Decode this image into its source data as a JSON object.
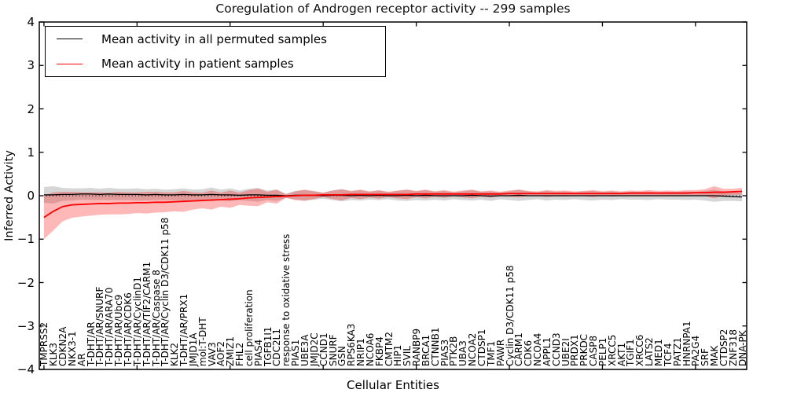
{
  "chart_data": {
    "type": "line",
    "title": "Coregulation of Androgen receptor activity -- 299 samples",
    "xlabel": "Cellular Entities",
    "ylabel": "Inferred Activity",
    "ylim": [
      -4,
      4
    ],
    "ytick_labels": [
      "4",
      "3",
      "2",
      "1",
      "0",
      "−1",
      "−2",
      "−3",
      "−4"
    ],
    "grid": false,
    "legend_position": "upper left",
    "categories": [
      "TMPRSS2",
      "KLK3",
      "CDKN2A",
      "NKX3-1",
      "AR",
      "T-DHT/AR",
      "T-DHT/AR/SNURF",
      "T-DHT/AR/ARA70",
      "T-DHT/AR/Ubc9",
      "T-DHT/AR/CDK6",
      "T-DHT/AR/CyclinD1",
      "T-DHT/AR/TIF2/CARM1",
      "T-DHT/AR/Caspase 8",
      "T-DHT/AR/Cyclin D3/CDK11 p58",
      "KLK2",
      "T-DHT/AR/PRX1",
      "JMJD1A",
      "mol:T-DHT",
      "VAV3",
      "AOF2",
      "ZMIZ1",
      "FHL2",
      "cell proliferation",
      "PIAS4",
      "TGFB1I1",
      "CDC2L1",
      "response to oxidative stress",
      "PIAS1",
      "UBE3A",
      "JMJD2C",
      "CCND1",
      "SNURF",
      "GSN",
      "RPS6KA3",
      "NRIP1",
      "NCOA6",
      "FKBP4",
      "CMTM2",
      "HIP1",
      "SVIL",
      "RANBP9",
      "BRCA1",
      "CTNNB1",
      "PIAS3",
      "PTK2B",
      "UBA3",
      "NCOA2",
      "CTDSP1",
      "TMF1",
      "PAWR",
      "Cyclin D3/CDK11 p58",
      "CARM1",
      "CDK6",
      "NCOA4",
      "APPL1",
      "CCND3",
      "UBE2I",
      "PRDX1",
      "PRKDC",
      "CASP8",
      "PELP1",
      "XRCC5",
      "AKT1",
      "TGIF1",
      "XRCC6",
      "LATS2",
      "MED1",
      "TCF4",
      "PATZ1",
      "HNRNPA1",
      "PA2G4",
      "SRF",
      "MAK",
      "CTDSP2",
      "ZNF318",
      "DNA-PK"
    ],
    "series": [
      {
        "name": "Mean activity in all permuted samples",
        "color": "#000000",
        "values": [
          0.02,
          0.02,
          0.03,
          0.03,
          0.04,
          0.04,
          0.03,
          0.04,
          0.03,
          0.03,
          0.03,
          0.02,
          0.03,
          0.02,
          0.02,
          0.03,
          0.02,
          0.02,
          0.03,
          0.02,
          0.02,
          0.01,
          0.02,
          0.02,
          0.01,
          0.01,
          0.0,
          0.01,
          0.01,
          0.01,
          0.0,
          0.01,
          0.01,
          0.0,
          0.01,
          0.0,
          0.01,
          0.0,
          0.0,
          0.01,
          0.0,
          0.01,
          0.0,
          0.0,
          0.0,
          0.0,
          0.01,
          0.0,
          -0.01,
          0.0,
          0.0,
          0.01,
          0.0,
          0.0,
          0.0,
          0.0,
          0.0,
          0.0,
          0.0,
          0.0,
          0.0,
          0.0,
          0.0,
          0.0,
          0.0,
          0.0,
          0.0,
          0.0,
          0.0,
          0.0,
          0.0,
          0.0,
          0.0,
          -0.01,
          -0.02,
          -0.03
        ],
        "band_halfwidth": [
          0.18,
          0.2,
          0.15,
          0.14,
          0.13,
          0.14,
          0.13,
          0.14,
          0.13,
          0.13,
          0.14,
          0.13,
          0.13,
          0.12,
          0.13,
          0.14,
          0.12,
          0.13,
          0.16,
          0.12,
          0.15,
          0.11,
          0.14,
          0.16,
          0.11,
          0.13,
          0.05,
          0.1,
          0.12,
          0.1,
          0.07,
          0.11,
          0.14,
          0.1,
          0.12,
          0.09,
          0.11,
          0.08,
          0.11,
          0.13,
          0.1,
          0.12,
          0.09,
          0.11,
          0.08,
          0.1,
          0.12,
          0.09,
          0.11,
          0.08,
          0.1,
          0.13,
          0.1,
          0.08,
          0.11,
          0.09,
          0.1,
          0.08,
          0.1,
          0.11,
          0.09,
          0.1,
          0.08,
          0.09,
          0.09,
          0.1,
          0.08,
          0.09,
          0.09,
          0.1,
          0.09,
          0.11,
          0.14,
          0.11,
          0.1,
          0.1
        ],
        "band_color": "#999999",
        "band_opacity": 0.4
      },
      {
        "name": "Mean activity in patient samples",
        "color": "#ff0000",
        "values": [
          -0.5,
          -0.36,
          -0.25,
          -0.21,
          -0.2,
          -0.19,
          -0.18,
          -0.18,
          -0.17,
          -0.17,
          -0.16,
          -0.16,
          -0.15,
          -0.15,
          -0.14,
          -0.13,
          -0.12,
          -0.11,
          -0.1,
          -0.09,
          -0.08,
          -0.07,
          -0.05,
          -0.04,
          -0.03,
          -0.02,
          -0.01,
          0.0,
          0.01,
          0.01,
          0.02,
          0.02,
          0.02,
          0.03,
          0.03,
          0.03,
          0.03,
          0.03,
          0.03,
          0.03,
          0.04,
          0.04,
          0.04,
          0.04,
          0.04,
          0.04,
          0.04,
          0.04,
          0.04,
          0.04,
          0.05,
          0.05,
          0.05,
          0.05,
          0.05,
          0.05,
          0.05,
          0.05,
          0.05,
          0.05,
          0.05,
          0.05,
          0.05,
          0.06,
          0.06,
          0.06,
          0.06,
          0.06,
          0.06,
          0.06,
          0.07,
          0.07,
          0.08,
          0.08,
          0.09,
          0.1
        ],
        "band_halfwidth": [
          0.5,
          0.44,
          0.34,
          0.3,
          0.28,
          0.27,
          0.26,
          0.25,
          0.26,
          0.25,
          0.24,
          0.25,
          0.24,
          0.23,
          0.22,
          0.24,
          0.2,
          0.18,
          0.22,
          0.16,
          0.2,
          0.14,
          0.18,
          0.2,
          0.12,
          0.16,
          0.04,
          0.1,
          0.13,
          0.09,
          0.05,
          0.1,
          0.13,
          0.08,
          0.11,
          0.07,
          0.1,
          0.06,
          0.09,
          0.11,
          0.07,
          0.1,
          0.06,
          0.09,
          0.05,
          0.08,
          0.1,
          0.06,
          0.08,
          0.05,
          0.07,
          0.09,
          0.06,
          0.05,
          0.08,
          0.06,
          0.07,
          0.05,
          0.06,
          0.08,
          0.05,
          0.07,
          0.05,
          0.06,
          0.05,
          0.07,
          0.05,
          0.06,
          0.05,
          0.07,
          0.06,
          0.08,
          0.14,
          0.08,
          0.07,
          0.08
        ],
        "band_color": "#ff0000",
        "band_opacity": 0.28
      }
    ],
    "zero_line": {
      "value": 0,
      "style": "dotted",
      "color": "#000000"
    }
  }
}
